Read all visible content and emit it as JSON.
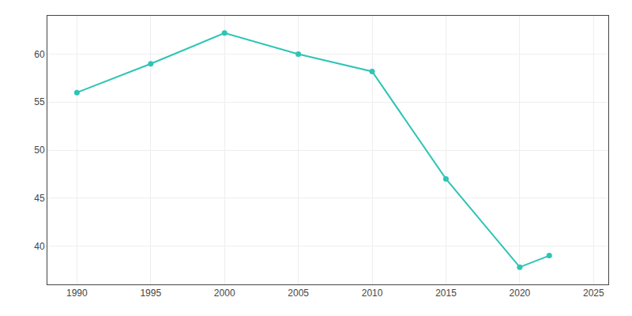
{
  "chart_data": {
    "type": "line",
    "x": [
      1990,
      1995,
      2000,
      2005,
      2010,
      2015,
      2020,
      2022
    ],
    "values": [
      56.0,
      59.0,
      62.2,
      60.0,
      58.2,
      47.0,
      37.8,
      39.0
    ],
    "color": "#2EC4B6",
    "marker": "circle",
    "xlim": [
      1988,
      2026
    ],
    "xticks": [
      1990,
      1995,
      2000,
      2005,
      2010,
      2015,
      2020,
      2025
    ],
    "ylim": [
      36,
      64
    ],
    "yticks": [
      40,
      45,
      50,
      55,
      60
    ],
    "grid": true
  }
}
